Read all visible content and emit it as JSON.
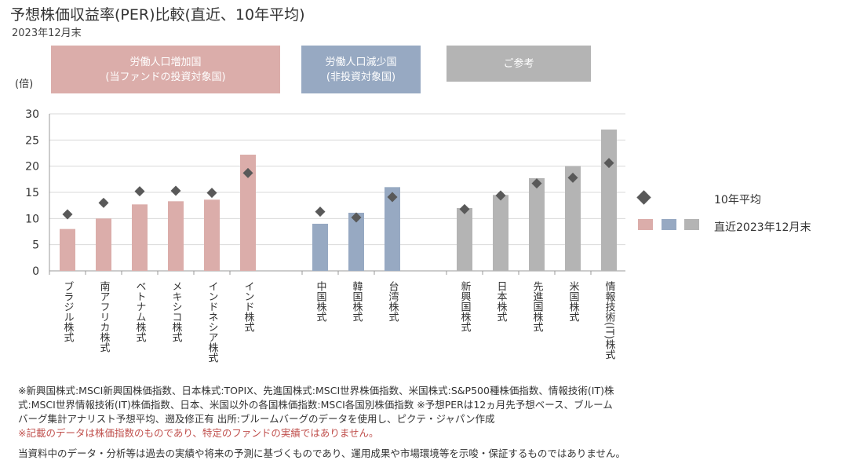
{
  "title": "予想株価収益率(PER)比較(直近、10年平均)",
  "subtitle": "2023年12月末",
  "groups": [
    {
      "line1": "労働人口増加国",
      "line2": "(当ファンドの投資対象国)",
      "color": "#dbadaa"
    },
    {
      "line1": "労働人口減少国",
      "line2": "(非投資対象国)",
      "color": "#97a9c2"
    },
    {
      "line1": "ご参考",
      "line2": "",
      "color": "#b4b4b4"
    }
  ],
  "chart_data": {
    "type": "bar",
    "ylabel": "(倍)",
    "ylim": [
      0,
      30
    ],
    "yticks": [
      0,
      5,
      10,
      15,
      20,
      25,
      30
    ],
    "grid": true,
    "legend_position": "right",
    "categories": [
      "ブラジル株式",
      "南アフリカ株式",
      "ベトナム株式",
      "メキシコ株式",
      "インドネシア株式",
      "インド株式",
      "中国株式",
      "韓国株式",
      "台湾株式",
      "新興国株式",
      "日本株式",
      "先進国株式",
      "米国株式",
      "情報技術(IT)株式"
    ],
    "category_group": [
      0,
      0,
      0,
      0,
      0,
      0,
      1,
      1,
      1,
      2,
      2,
      2,
      2,
      2
    ],
    "series": [
      {
        "name": "直近2023年12月末",
        "kind": "bar",
        "values": [
          8.0,
          10.0,
          12.7,
          13.3,
          13.6,
          22.2,
          9.0,
          11.1,
          16.0,
          12.0,
          14.5,
          17.7,
          20.0,
          27.0
        ]
      },
      {
        "name": "10年平均",
        "kind": "diamond",
        "values": [
          10.8,
          13.0,
          15.2,
          15.3,
          14.9,
          18.7,
          11.3,
          10.2,
          14.1,
          11.8,
          14.4,
          16.7,
          17.8,
          20.6
        ]
      }
    ],
    "colors": {
      "increase": "#dbadaa",
      "decrease": "#97a9c2",
      "reference": "#b4b4b4",
      "avg_marker": "#595959",
      "grid": "#d9d9d9"
    }
  },
  "legend": {
    "avg_label": "10年平均",
    "latest_label": "直近2023年12月末"
  },
  "notes": {
    "line1": "※新興国株式:MSCI新興国株価指数、日本株式:TOPIX、先進国株式:MSCI世界株価指数、米国株式:S&P500種株価指数、情報技術(IT)株",
    "line2": "式:MSCI世界情報技術(IT)株価指数、日本、米国以外の各国株価指数:MSCI各国別株価指数 ※予想PERは12ヵ月先予想ベース、ブルーム",
    "line3": "バーグ集計アナリスト予想平均、遡及修正有 出所:ブルームバーグのデータを使用し、ピクテ・ジャパン作成",
    "red": "※記載のデータは株価指数のものであり、特定のファンドの実績ではありません。"
  },
  "footer": "当資料中のデータ・分析等は過去の実績や将来の予測に基づくものであり、運用成果や市場環境等を示唆・保証するものではありません。"
}
